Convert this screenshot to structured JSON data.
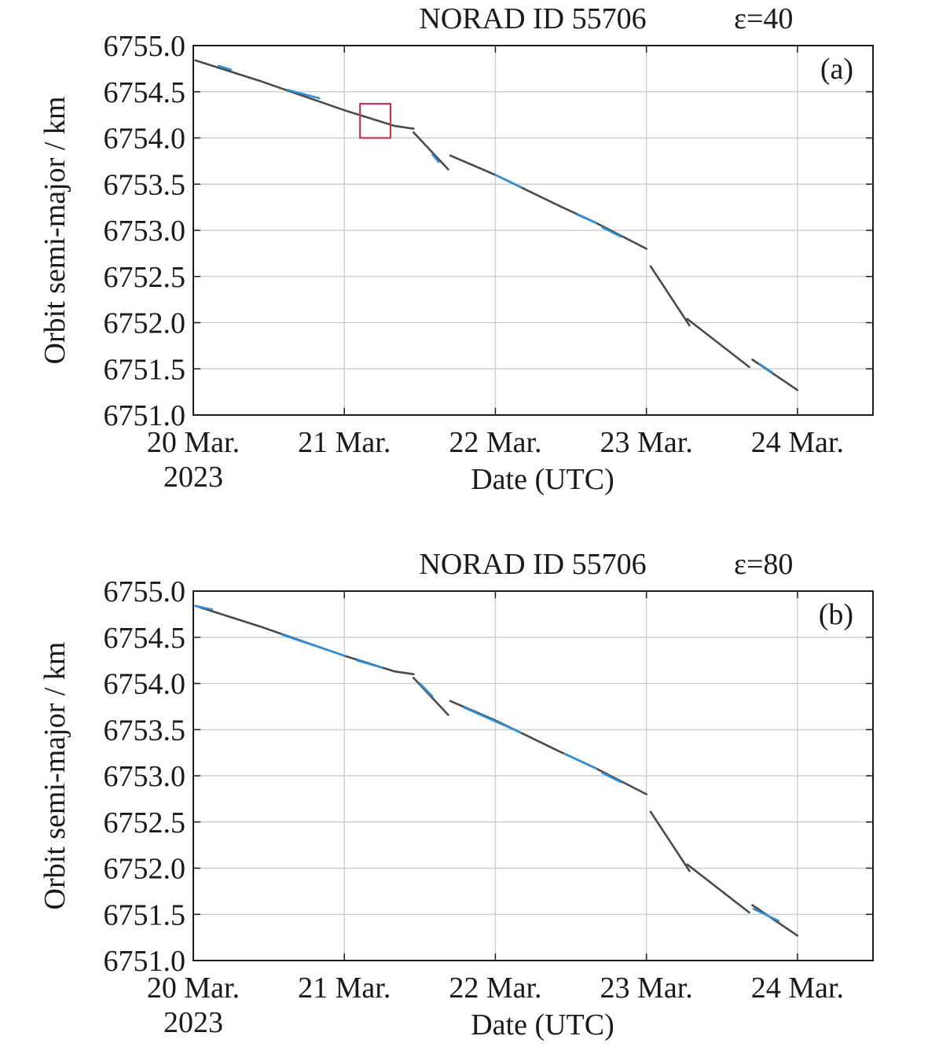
{
  "chart_data": [
    {
      "type": "line",
      "panel_label": "(a)",
      "title": "NORAD ID 55706",
      "annotation": "ε=40",
      "xlabel": "Date (UTC)",
      "ylabel": "Orbit semi-major / km",
      "x_ticks": [
        {
          "lines": [
            "20 Mar.",
            "2023"
          ]
        },
        {
          "lines": [
            "21 Mar."
          ]
        },
        {
          "lines": [
            "22 Mar."
          ]
        },
        {
          "lines": [
            "23 Mar."
          ]
        },
        {
          "lines": [
            "24 Mar."
          ]
        }
      ],
      "y_ticks": [
        "6751.0",
        "6751.5",
        "6752.0",
        "6752.5",
        "6753.0",
        "6753.5",
        "6754.0",
        "6754.5",
        "6755.0"
      ],
      "xlim": [
        "2023-03-20T00:00",
        "2023-03-24T12:00"
      ],
      "ylim": [
        6751.0,
        6755.0
      ],
      "grid": true,
      "colors": {
        "main": "#4a4a4a",
        "highlight": "#2f8fd8",
        "box": "#c8334f"
      },
      "highlight_box": {
        "x": [
          "2023-03-21T02:30",
          "2023-03-21T07:20"
        ],
        "y": [
          6754.0,
          6754.37
        ]
      },
      "series": [
        {
          "x": [
            "2023-03-20T00:20",
            "2023-03-20T10:30",
            "2023-03-21T00:00",
            "2023-03-21T08:00",
            "2023-03-21T11:00"
          ],
          "values": [
            6754.84,
            6754.62,
            6754.3,
            6754.13,
            6754.1
          ]
        },
        {
          "x": [
            "2023-03-21T11:00",
            "2023-03-21T16:30"
          ],
          "values": [
            6754.06,
            6753.66
          ]
        },
        {
          "x": [
            "2023-03-21T16:50",
            "2023-03-22T00:00",
            "2023-03-22T10:00",
            "2023-03-22T16:00",
            "2023-03-23T00:00"
          ],
          "values": [
            6753.81,
            6753.6,
            6753.27,
            6753.08,
            6752.8
          ]
        },
        {
          "x": [
            "2023-03-23T00:40",
            "2023-03-23T06:50"
          ],
          "values": [
            6752.61,
            6751.97
          ]
        },
        {
          "x": [
            "2023-03-23T06:30",
            "2023-03-23T16:20"
          ],
          "values": [
            6752.04,
            6751.52
          ]
        },
        {
          "x": [
            "2023-03-23T16:50",
            "2023-03-24T00:00"
          ],
          "values": [
            6751.6,
            6751.27
          ]
        }
      ],
      "highlight_segments": [
        {
          "x": [
            "2023-03-20T04:00",
            "2023-03-20T06:00"
          ],
          "values": [
            6754.78,
            6754.74
          ]
        },
        {
          "x": [
            "2023-03-20T15:00",
            "2023-03-20T20:00"
          ],
          "values": [
            6754.52,
            6754.43
          ]
        },
        {
          "x": [
            "2023-03-21T14:00",
            "2023-03-21T15:00"
          ],
          "values": [
            6753.82,
            6753.74
          ]
        },
        {
          "x": [
            "2023-03-22T00:00",
            "2023-03-22T04:00"
          ],
          "values": [
            6753.6,
            6753.47
          ]
        },
        {
          "x": [
            "2023-03-22T13:00",
            "2023-03-22T16:00"
          ],
          "values": [
            6753.17,
            6753.08
          ]
        },
        {
          "x": [
            "2023-03-22T17:00",
            "2023-03-22T20:00"
          ],
          "values": [
            6753.03,
            6752.93
          ]
        },
        {
          "x": [
            "2023-03-23T18:00",
            "2023-03-23T20:00"
          ],
          "values": [
            6751.55,
            6751.46
          ]
        }
      ]
    },
    {
      "type": "line",
      "panel_label": "(b)",
      "title": "NORAD ID 55706",
      "annotation": "ε=80",
      "xlabel": "Date (UTC)",
      "ylabel": "Orbit semi-major / km",
      "x_ticks": [
        {
          "lines": [
            "20 Mar.",
            "2023"
          ]
        },
        {
          "lines": [
            "21 Mar."
          ]
        },
        {
          "lines": [
            "22 Mar."
          ]
        },
        {
          "lines": [
            "23 Mar."
          ]
        },
        {
          "lines": [
            "24 Mar."
          ]
        }
      ],
      "y_ticks": [
        "6751.0",
        "6751.5",
        "6752.0",
        "6752.5",
        "6753.0",
        "6753.5",
        "6754.0",
        "6754.5",
        "6755.0"
      ],
      "xlim": [
        "2023-03-20T00:00",
        "2023-03-24T12:00"
      ],
      "ylim": [
        6751.0,
        6755.0
      ],
      "grid": true,
      "colors": {
        "main": "#4a4a4a",
        "highlight": "#2f8fd8"
      },
      "series": [
        {
          "x": [
            "2023-03-20T00:20",
            "2023-03-20T10:30",
            "2023-03-21T00:00",
            "2023-03-21T08:00",
            "2023-03-21T11:00"
          ],
          "values": [
            6754.84,
            6754.62,
            6754.3,
            6754.13,
            6754.1
          ]
        },
        {
          "x": [
            "2023-03-21T11:00",
            "2023-03-21T16:30"
          ],
          "values": [
            6754.06,
            6753.66
          ]
        },
        {
          "x": [
            "2023-03-21T16:50",
            "2023-03-22T00:00",
            "2023-03-22T10:00",
            "2023-03-22T16:00",
            "2023-03-23T00:00"
          ],
          "values": [
            6753.81,
            6753.6,
            6753.27,
            6753.08,
            6752.8
          ]
        },
        {
          "x": [
            "2023-03-23T00:40",
            "2023-03-23T06:50"
          ],
          "values": [
            6752.61,
            6751.97
          ]
        },
        {
          "x": [
            "2023-03-23T06:30",
            "2023-03-23T16:20"
          ],
          "values": [
            6752.04,
            6751.52
          ]
        },
        {
          "x": [
            "2023-03-23T16:50",
            "2023-03-24T00:00"
          ],
          "values": [
            6751.6,
            6751.27
          ]
        }
      ],
      "highlight_segments": [
        {
          "x": [
            "2023-03-20T00:20",
            "2023-03-20T03:00"
          ],
          "values": [
            6754.84,
            6754.8
          ]
        },
        {
          "x": [
            "2023-03-20T14:00",
            "2023-03-21T00:00"
          ],
          "values": [
            6754.53,
            6754.3
          ]
        },
        {
          "x": [
            "2023-03-21T02:00",
            "2023-03-21T06:00"
          ],
          "values": [
            6754.25,
            6754.17
          ]
        },
        {
          "x": [
            "2023-03-21T12:00",
            "2023-03-21T14:00"
          ],
          "values": [
            6754.0,
            6753.86
          ]
        },
        {
          "x": [
            "2023-03-21T19:00",
            "2023-03-22T04:00"
          ],
          "values": [
            6753.74,
            6753.47
          ]
        },
        {
          "x": [
            "2023-03-22T11:00",
            "2023-03-22T16:00"
          ],
          "values": [
            6753.24,
            6753.08
          ]
        },
        {
          "x": [
            "2023-03-22T17:00",
            "2023-03-22T20:00"
          ],
          "values": [
            6753.03,
            6752.93
          ]
        },
        {
          "x": [
            "2023-03-23T17:00",
            "2023-03-23T21:00"
          ],
          "values": [
            6751.56,
            6751.43
          ]
        }
      ]
    }
  ]
}
